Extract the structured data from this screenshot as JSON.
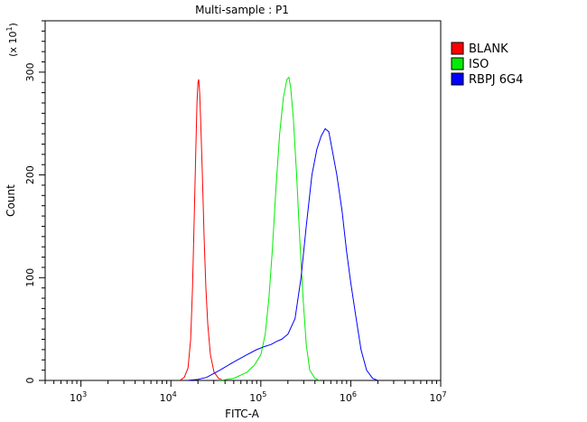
{
  "chart_data": {
    "type": "line",
    "title": "Multi-sample : P1",
    "xlabel": "FITC-A",
    "ylabel": "Count",
    "y_multiplier": "(x 10",
    "y_multiplier_exp": "1",
    "y_multiplier_close": ")",
    "x_scale": "log",
    "xlim": [
      10000,
      10000000
    ],
    "x_shown_from": 400,
    "ylim": [
      0,
      350
    ],
    "grid": false,
    "legend_position": "top-right",
    "x_ticks": [
      {
        "value": 1000,
        "base": "10",
        "exp": "3"
      },
      {
        "value": 10000,
        "base": "10",
        "exp": "4"
      },
      {
        "value": 100000,
        "base": "10",
        "exp": "5"
      },
      {
        "value": 1000000,
        "base": "10",
        "exp": "6"
      },
      {
        "value": 10000000,
        "base": "10",
        "exp": "7"
      }
    ],
    "y_ticks": [
      {
        "value": 0,
        "label": "0"
      },
      {
        "value": 100,
        "label": "100"
      },
      {
        "value": 200,
        "label": "200"
      },
      {
        "value": 300,
        "label": "300"
      }
    ],
    "series": [
      {
        "name": "BLANK",
        "color": "#ff0000",
        "x": [
          12600,
          14100,
          15500,
          16600,
          17400,
          18200,
          19000,
          19500,
          20000,
          20400,
          20900,
          21400,
          22400,
          23400,
          24500,
          25700,
          27500,
          30200,
          33900,
          38000
        ],
        "y": [
          0,
          3,
          12,
          40,
          90,
          160,
          230,
          270,
          290,
          293,
          280,
          255,
          200,
          140,
          90,
          55,
          25,
          8,
          2,
          0
        ]
      },
      {
        "name": "ISO",
        "color": "#00ee00",
        "x": [
          35000,
          50000,
          70000,
          85000,
          100000,
          112000,
          123000,
          135000,
          148000,
          162000,
          178000,
          195000,
          205000,
          215000,
          230000,
          250000,
          270000,
          295000,
          320000,
          350000,
          400000,
          450000
        ],
        "y": [
          0,
          2,
          8,
          15,
          25,
          45,
          80,
          130,
          190,
          240,
          275,
          293,
          295,
          285,
          255,
          200,
          140,
          80,
          35,
          10,
          2,
          0
        ]
      },
      {
        "name": "RBPJ 6G4",
        "color": "#0000ff",
        "x": [
          15000,
          20000,
          25000,
          35000,
          50000,
          70000,
          90000,
          110000,
          130000,
          150000,
          170000,
          200000,
          240000,
          280000,
          320000,
          370000,
          420000,
          470000,
          520000,
          570000,
          620000,
          700000,
          800000,
          900000,
          1000000,
          1150000,
          1300000,
          1500000,
          1750000,
          2000000
        ],
        "y": [
          0,
          1,
          3,
          10,
          18,
          25,
          30,
          33,
          35,
          38,
          40,
          45,
          60,
          100,
          150,
          200,
          225,
          238,
          245,
          242,
          225,
          200,
          165,
          125,
          95,
          60,
          30,
          10,
          2,
          0
        ]
      }
    ]
  }
}
